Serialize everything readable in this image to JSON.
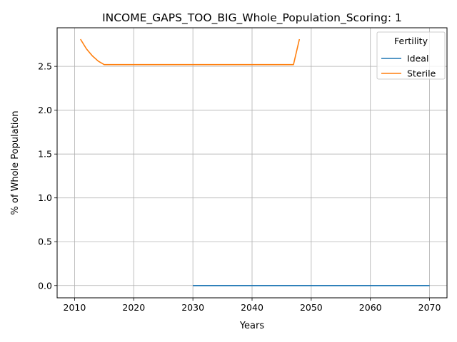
{
  "chart_data": {
    "type": "line",
    "title": "INCOME_GAPS_TOO_BIG_Whole_Population_Scoring: 1",
    "xlabel": "Years",
    "ylabel": "% of Whole Population",
    "xlim": [
      2007.05,
      2072.95
    ],
    "ylim": [
      -0.14,
      2.94
    ],
    "xticks": [
      2010,
      2020,
      2030,
      2040,
      2050,
      2060,
      2070
    ],
    "yticks": [
      0.0,
      0.5,
      1.0,
      1.5,
      2.0,
      2.5
    ],
    "xtick_labels": [
      "2010",
      "2020",
      "2030",
      "2040",
      "2050",
      "2060",
      "2070"
    ],
    "ytick_labels": [
      "0.0",
      "0.5",
      "1.0",
      "1.5",
      "2.0",
      "2.5"
    ],
    "grid": true,
    "legend": {
      "title": "Fertility",
      "position": "top-right"
    },
    "series": [
      {
        "name": "Ideal",
        "color": "#1f77b4",
        "x": [
          2030,
          2070
        ],
        "y": [
          0.0,
          0.0
        ]
      },
      {
        "name": "Sterile",
        "color": "#ff7f0e",
        "x": [
          2011,
          2012,
          2013,
          2014,
          2015,
          2016,
          2020,
          2025,
          2030,
          2035,
          2040,
          2045,
          2047,
          2048
        ],
        "y": [
          2.81,
          2.7,
          2.62,
          2.56,
          2.52,
          2.52,
          2.52,
          2.52,
          2.52,
          2.52,
          2.52,
          2.52,
          2.52,
          2.81
        ]
      }
    ]
  }
}
